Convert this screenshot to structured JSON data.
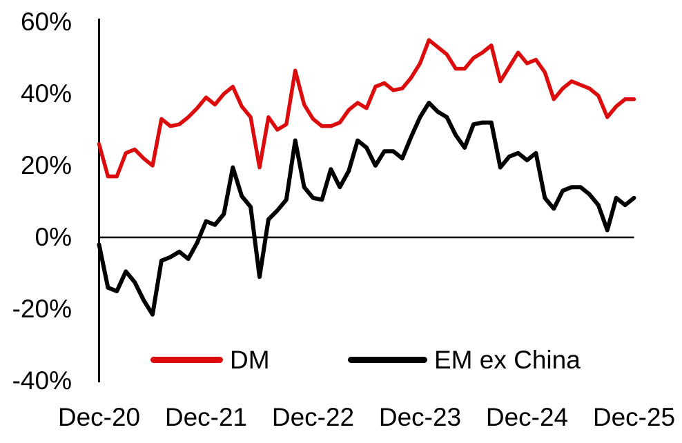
{
  "chart_data": {
    "type": "line",
    "title": "",
    "xlabel": "",
    "ylabel": "",
    "x_frequency": "monthly",
    "x_start": "Dec-20",
    "x_end": "Dec-25",
    "x_tick_labels": [
      "Dec-20",
      "Dec-21",
      "Dec-22",
      "Dec-23",
      "Dec-24",
      "Dec-25"
    ],
    "y_tick_labels": [
      "60%",
      "40%",
      "20%",
      "0%",
      "-20%",
      "-40%"
    ],
    "y_tick_values": [
      60,
      40,
      20,
      0,
      -20,
      -40
    ],
    "ylim": [
      -40,
      60
    ],
    "grid": "zero-line-only",
    "legend_position": "bottom-inside",
    "axis_color": "#000000",
    "series": [
      {
        "name": "DM",
        "color": "#dc0c0c",
        "values": [
          26,
          17,
          17,
          23.5,
          24.5,
          22,
          20,
          33,
          31,
          31.5,
          33.5,
          36,
          39,
          37,
          40,
          42,
          36.5,
          33.5,
          19.5,
          33.5,
          30,
          31.5,
          46.5,
          37,
          33,
          31,
          31,
          32,
          35.5,
          37.5,
          36,
          42,
          43,
          41,
          41.5,
          44.5,
          48.5,
          55,
          53,
          51,
          47,
          47,
          50,
          51.5,
          53.5,
          43.5,
          47.5,
          51.5,
          48.5,
          49.5,
          46,
          38.5,
          41.5,
          43.5,
          42.5,
          41.5,
          39.5,
          33.5,
          36.5,
          38.5,
          38.5
        ]
      },
      {
        "name": "EM ex China",
        "color": "#000000",
        "values": [
          -2,
          -14,
          -15,
          -9.5,
          -12.5,
          -17.5,
          -21.5,
          -6.5,
          -5.5,
          -4,
          -6,
          -1.5,
          4.5,
          3.5,
          6.5,
          19.5,
          11.5,
          8.5,
          -11,
          5,
          7.5,
          10.5,
          27,
          14,
          11,
          10.5,
          19,
          14,
          18.5,
          27,
          25,
          20,
          24,
          24,
          22,
          28,
          33.5,
          37.5,
          35,
          33.5,
          28.5,
          25,
          31.5,
          32,
          32,
          19.5,
          22.5,
          23.5,
          21.5,
          23.5,
          11,
          8,
          13,
          14,
          14,
          12,
          9,
          2,
          11,
          9,
          11
        ]
      }
    ]
  }
}
